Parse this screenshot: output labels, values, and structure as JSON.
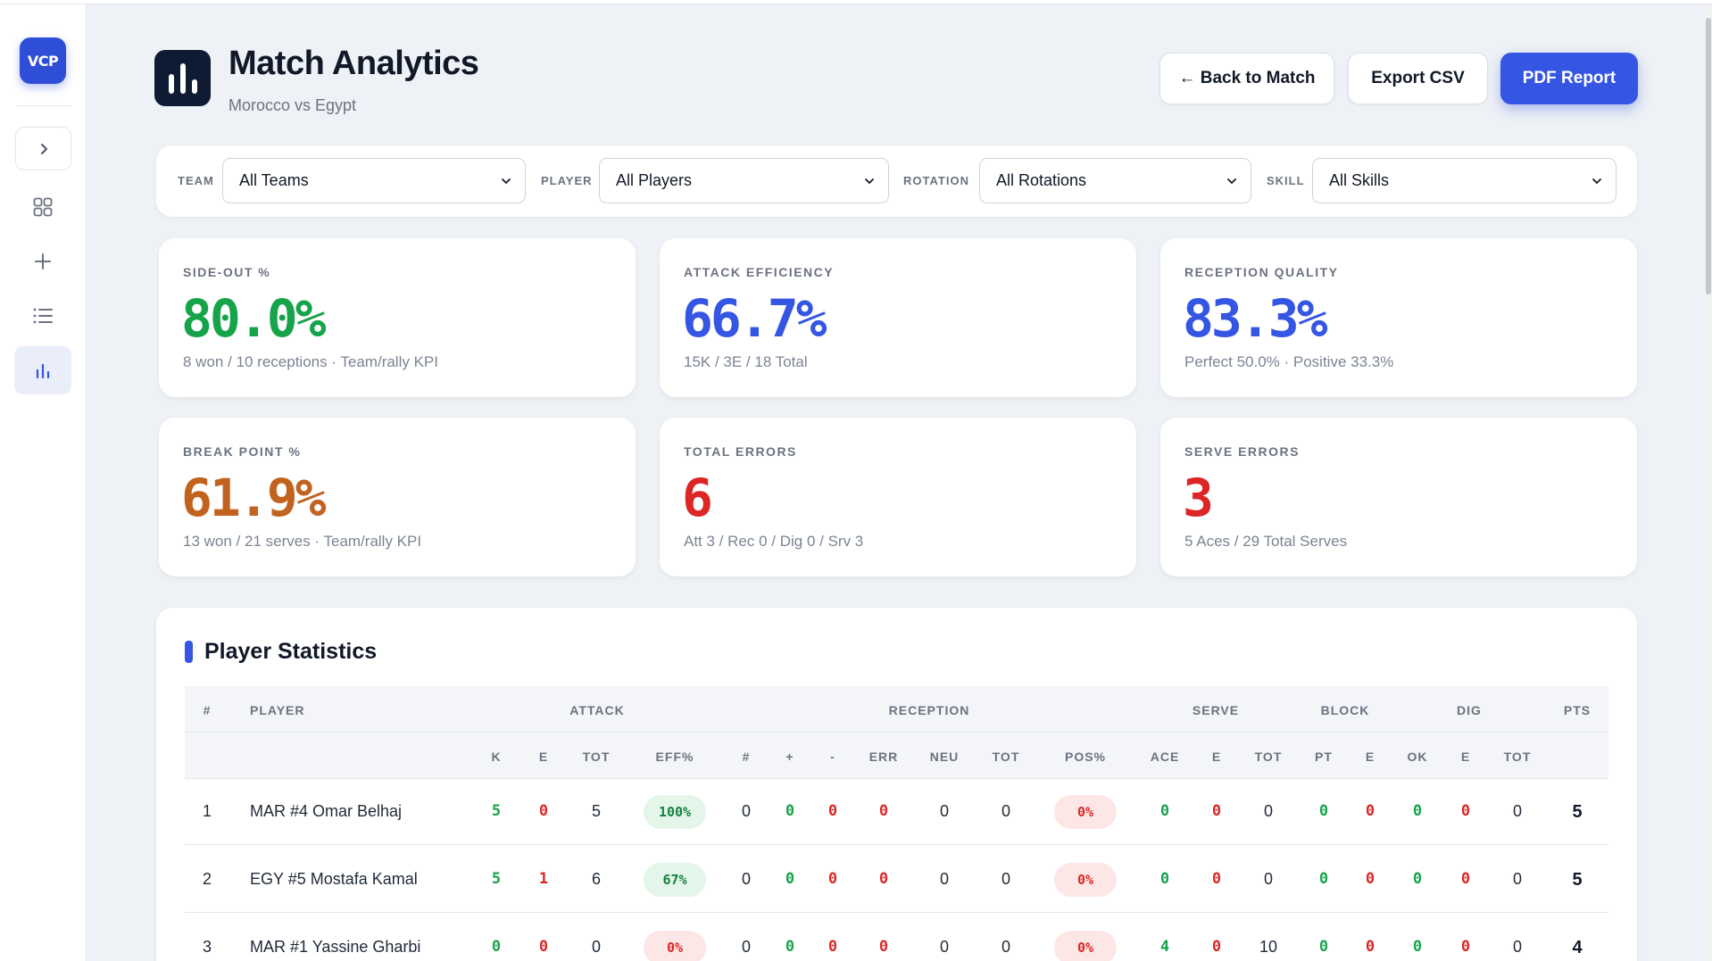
{
  "sidebar": {
    "logo": "VCP",
    "items": [
      {
        "name": "dashboard",
        "icon": "grid-icon"
      },
      {
        "name": "new",
        "icon": "plus-icon"
      },
      {
        "name": "list",
        "icon": "list-icon"
      },
      {
        "name": "analytics",
        "icon": "bar-chart-icon",
        "active": true
      }
    ]
  },
  "header": {
    "title": "Match Analytics",
    "subtitle": "Morocco vs Egypt",
    "buttons": {
      "back": "← Back to Match",
      "export": "Export CSV",
      "pdf": "PDF Report"
    }
  },
  "filters": {
    "team": {
      "label": "TEAM",
      "value": "All Teams"
    },
    "player": {
      "label": "PLAYER",
      "value": "All Players"
    },
    "rotation": {
      "label": "ROTATION",
      "value": "All Rotations"
    },
    "skill": {
      "label": "SKILL",
      "value": "All Skills"
    }
  },
  "kpis": [
    {
      "label": "SIDE-OUT %",
      "value": "80.0%",
      "sub": "8 won / 10 receptions · Team/rally KPI",
      "color": "#16a34a"
    },
    {
      "label": "ATTACK EFFICIENCY",
      "value": "66.7%",
      "sub": "15K / 3E / 18 Total",
      "color": "#3555e3"
    },
    {
      "label": "RECEPTION QUALITY",
      "value": "83.3%",
      "sub": "Perfect 50.0% · Positive 33.3%",
      "color": "#3555e3"
    },
    {
      "label": "BREAK POINT %",
      "value": "61.9%",
      "sub": "13 won / 21 serves · Team/rally KPI",
      "color": "#c2621f"
    },
    {
      "label": "TOTAL ERRORS",
      "value": "6",
      "sub": "Att 3 / Rec 0 / Dig 0 / Srv 3",
      "color": "#dc2626"
    },
    {
      "label": "SERVE ERRORS",
      "value": "3",
      "sub": "5 Aces / 29 Total Serves",
      "color": "#dc2626"
    }
  ],
  "table": {
    "title": "Player Statistics",
    "group_headers": {
      "num": "#",
      "player": "PLAYER",
      "attack": "ATTACK",
      "reception": "RECEPTION",
      "serve": "SERVE",
      "block": "BLOCK",
      "dig": "DIG",
      "pts": "PTS"
    },
    "sub_headers": [
      "K",
      "E",
      "TOT",
      "EFF%",
      "#",
      "+",
      "-",
      "ERR",
      "NEU",
      "TOT",
      "POS%",
      "ACE",
      "E",
      "TOT",
      "PT",
      "E",
      "OK",
      "E",
      "TOT"
    ],
    "rows": [
      {
        "num": "1",
        "player": "MAR #4 Omar Belhaj",
        "att_k": "5",
        "att_e": "0",
        "att_tot": "5",
        "att_eff": "100%",
        "rec_num": "0",
        "rec_plus": "0",
        "rec_minus": "0",
        "rec_err": "0",
        "rec_neu": "0",
        "rec_tot": "0",
        "rec_pos": "0%",
        "srv_ace": "0",
        "srv_e": "0",
        "srv_tot": "0",
        "blk_pt": "0",
        "blk_e": "0",
        "blk_ok": "0",
        "dig_e": "0",
        "dig_tot": "0",
        "pts": "5"
      },
      {
        "num": "2",
        "player": "EGY #5 Mostafa Kamal",
        "att_k": "5",
        "att_e": "1",
        "att_tot": "6",
        "att_eff": "67%",
        "rec_num": "0",
        "rec_plus": "0",
        "rec_minus": "0",
        "rec_err": "0",
        "rec_neu": "0",
        "rec_tot": "0",
        "rec_pos": "0%",
        "srv_ace": "0",
        "srv_e": "0",
        "srv_tot": "0",
        "blk_pt": "0",
        "blk_e": "0",
        "blk_ok": "0",
        "dig_e": "0",
        "dig_tot": "0",
        "pts": "5"
      },
      {
        "num": "3",
        "player": "MAR #1 Yassine Gharbi",
        "att_k": "0",
        "att_e": "0",
        "att_tot": "0",
        "att_eff": "0%",
        "rec_num": "0",
        "rec_plus": "0",
        "rec_minus": "0",
        "rec_err": "0",
        "rec_neu": "0",
        "rec_tot": "0",
        "rec_pos": "0%",
        "srv_ace": "4",
        "srv_e": "0",
        "srv_tot": "10",
        "blk_pt": "0",
        "blk_e": "0",
        "blk_ok": "0",
        "dig_e": "0",
        "dig_tot": "0",
        "pts": "4"
      }
    ]
  }
}
